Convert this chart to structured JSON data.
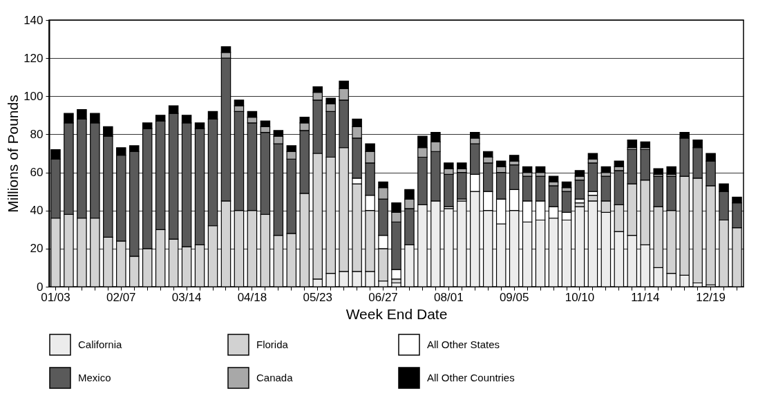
{
  "chart_data": {
    "type": "bar",
    "stacked": true,
    "xlabel": "Week End Date",
    "ylabel": "Millions of Pounds",
    "categories": [
      "01/03",
      null,
      null,
      null,
      null,
      "02/07",
      null,
      null,
      null,
      null,
      "03/14",
      null,
      null,
      null,
      null,
      "04/18",
      null,
      null,
      null,
      null,
      "05/23",
      null,
      null,
      null,
      null,
      "06/27",
      null,
      null,
      null,
      null,
      "08/01",
      null,
      null,
      null,
      null,
      "09/05",
      null,
      null,
      null,
      null,
      "10/10",
      null,
      null,
      null,
      null,
      "11/14",
      null,
      null,
      null,
      null,
      "12/19",
      null,
      null
    ],
    "series": [
      {
        "name": "California",
        "color": "#ececec",
        "values": [
          0,
          0,
          0,
          0,
          0,
          0,
          0,
          0,
          0,
          0,
          0,
          0,
          0,
          0,
          0,
          0,
          0,
          0,
          0,
          0,
          4,
          7,
          8,
          8,
          8,
          3,
          2,
          22,
          43,
          45,
          41,
          45,
          50,
          40,
          33,
          40,
          34,
          35,
          36,
          35,
          42,
          45,
          39,
          29,
          27,
          22,
          10,
          7,
          6,
          2,
          1,
          0,
          0
        ]
      },
      {
        "name": "Florida",
        "color": "#d2d2d2",
        "values": [
          36,
          38,
          36,
          36,
          26,
          24,
          16,
          20,
          30,
          25,
          21,
          22,
          32,
          45,
          40,
          40,
          38,
          27,
          28,
          49,
          66,
          61,
          65,
          46,
          32,
          17,
          2,
          0,
          0,
          0,
          0,
          0,
          0,
          0,
          0,
          0,
          0,
          0,
          0,
          0,
          2,
          3,
          6,
          14,
          27,
          34,
          32,
          33,
          52,
          55,
          52,
          35,
          31
        ]
      },
      {
        "name": "All Other States",
        "color": "#ffffff",
        "values": [
          0,
          0,
          0,
          0,
          0,
          0,
          0,
          0,
          0,
          0,
          0,
          0,
          0,
          0,
          0,
          0,
          0,
          0,
          0,
          0,
          0,
          0,
          0,
          3,
          8,
          7,
          5,
          0,
          0,
          0,
          1,
          1,
          9,
          10,
          13,
          11,
          11,
          10,
          6,
          4,
          2,
          2,
          0,
          0,
          0,
          0,
          0,
          0,
          0,
          0,
          0,
          0,
          0
        ]
      },
      {
        "name": "Mexico",
        "color": "#5a5a5a",
        "values": [
          31,
          48,
          52,
          50,
          53,
          45,
          55,
          63,
          57,
          66,
          65,
          61,
          56,
          75,
          52,
          46,
          43,
          48,
          39,
          33,
          28,
          24,
          25,
          21,
          17,
          19,
          25,
          19,
          25,
          26,
          17,
          14,
          16,
          15,
          14,
          13,
          13,
          13,
          11,
          11,
          10,
          15,
          13,
          18,
          18,
          16,
          16,
          18,
          20,
          16,
          13,
          15,
          13
        ]
      },
      {
        "name": "Canada",
        "color": "#a8a8a8",
        "values": [
          0,
          0,
          0,
          0,
          0,
          0,
          0,
          0,
          0,
          0,
          0,
          0,
          0,
          3,
          3,
          3,
          3,
          4,
          4,
          4,
          4,
          4,
          6,
          6,
          6,
          6,
          5,
          5,
          5,
          5,
          3,
          2,
          3,
          3,
          3,
          2,
          2,
          2,
          2,
          2,
          2,
          2,
          2,
          2,
          1,
          1,
          1,
          1,
          0,
          0,
          0,
          0,
          0
        ]
      },
      {
        "name": "All Other Countries",
        "color": "#000000",
        "values": [
          5,
          5,
          5,
          5,
          5,
          4,
          3,
          3,
          3,
          4,
          4,
          3,
          4,
          3,
          3,
          3,
          3,
          3,
          3,
          3,
          3,
          3,
          4,
          4,
          4,
          3,
          5,
          5,
          6,
          5,
          3,
          3,
          3,
          3,
          3,
          3,
          3,
          3,
          3,
          3,
          3,
          3,
          3,
          3,
          4,
          3,
          3,
          4,
          3,
          4,
          4,
          4,
          3
        ]
      }
    ],
    "ylim": [
      0,
      140
    ],
    "yticks": [
      0,
      20,
      40,
      60,
      80,
      100,
      120,
      140
    ],
    "grid": "y",
    "legend": "bottom"
  }
}
